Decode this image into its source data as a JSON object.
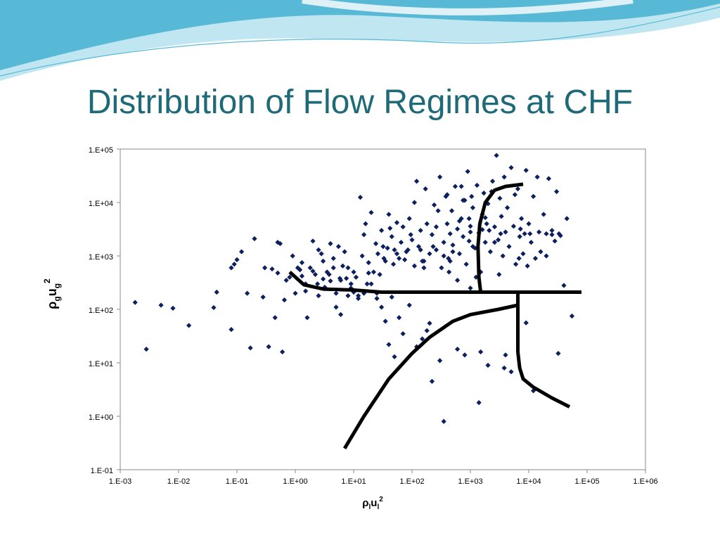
{
  "slide": {
    "title": "Distribution of Flow Regimes at CHF"
  },
  "colors": {
    "title": "#1f6a78",
    "points": "#0c1f5e",
    "boundary": "#000000",
    "wave_dark": "#57b9d6",
    "wave_light": "#bfe6f1"
  },
  "chart_data": {
    "type": "scatter",
    "title": "",
    "xlabel": {
      "base": "ρ",
      "sub1": "l",
      "mid": "u",
      "sub2": "l",
      "sup": "2"
    },
    "ylabel": {
      "base": "ρ",
      "sub1": "g",
      "mid": "u",
      "sub2": "g",
      "sup": "2"
    },
    "x_scale": "log",
    "y_scale": "log",
    "xlim": [
      0.001,
      1000000
    ],
    "ylim": [
      0.1,
      100000
    ],
    "x_ticks": [
      "1.E-03",
      "1.E-02",
      "1.E-01",
      "1.E+00",
      "1.E+01",
      "1.E+02",
      "1.E+03",
      "1.E+04",
      "1.E+05",
      "1.E+06"
    ],
    "y_ticks": [
      "1.E-01",
      "1.E+00",
      "1.E+01",
      "1.E+02",
      "1.E+03",
      "1.E+04",
      "1.E+05"
    ],
    "grid": false,
    "marker": "diamond",
    "points": [
      [
        0.0018,
        135
      ],
      [
        0.0028,
        18
      ],
      [
        0.005,
        120
      ],
      [
        0.008,
        105
      ],
      [
        0.015,
        50
      ],
      [
        0.045,
        210
      ],
      [
        0.04,
        108
      ],
      [
        0.08,
        42
      ],
      [
        0.08,
        600
      ],
      [
        0.09,
        700
      ],
      [
        0.1,
        850
      ],
      [
        0.12,
        1200
      ],
      [
        0.15,
        200
      ],
      [
        0.17,
        19
      ],
      [
        0.2,
        2100
      ],
      [
        0.28,
        170
      ],
      [
        0.3,
        600
      ],
      [
        0.35,
        20
      ],
      [
        0.4,
        570
      ],
      [
        0.5,
        1800
      ],
      [
        0.5,
        480
      ],
      [
        0.55,
        1700
      ],
      [
        0.6,
        16
      ],
      [
        0.65,
        150
      ],
      [
        0.45,
        70
      ],
      [
        0.7,
        350
      ],
      [
        0.8,
        400
      ],
      [
        0.9,
        1000
      ],
      [
        1.1,
        600
      ],
      [
        1.3,
        420
      ],
      [
        1.5,
        300
      ],
      [
        1.6,
        70
      ],
      [
        2,
        1900
      ],
      [
        2.2,
        450
      ],
      [
        2.5,
        1300
      ],
      [
        3,
        800
      ],
      [
        3.5,
        500
      ],
      [
        4,
        1700
      ],
      [
        4.5,
        900
      ],
      [
        5,
        200
      ],
      [
        5.5,
        1500
      ],
      [
        6,
        350
      ],
      [
        7,
        1200
      ],
      [
        8,
        600
      ],
      [
        9,
        300
      ],
      [
        10,
        210
      ],
      [
        12,
        180
      ],
      [
        13,
        12500
      ],
      [
        14,
        1000
      ],
      [
        15,
        2500
      ],
      [
        16,
        4000
      ],
      [
        18,
        480
      ],
      [
        20,
        6500
      ],
      [
        22,
        500
      ],
      [
        25,
        200
      ],
      [
        30,
        3000
      ],
      [
        32,
        1500
      ],
      [
        35,
        800
      ],
      [
        40,
        6000
      ],
      [
        45,
        2300
      ],
      [
        50,
        1300
      ],
      [
        55,
        4200
      ],
      [
        60,
        900
      ],
      [
        70,
        3500
      ],
      [
        80,
        1200
      ],
      [
        90,
        5000
      ],
      [
        100,
        2000
      ],
      [
        110,
        10000
      ],
      [
        120,
        25000
      ],
      [
        130,
        1500
      ],
      [
        140,
        3000
      ],
      [
        150,
        800
      ],
      [
        160,
        600
      ],
      [
        170,
        18000
      ],
      [
        180,
        4000
      ],
      [
        200,
        1100
      ],
      [
        220,
        2500
      ],
      [
        240,
        9000
      ],
      [
        260,
        1300
      ],
      [
        280,
        7000
      ],
      [
        300,
        30000
      ],
      [
        320,
        600
      ],
      [
        350,
        1800
      ],
      [
        380,
        13000
      ],
      [
        400,
        4000
      ],
      [
        420,
        900
      ],
      [
        450,
        2600
      ],
      [
        480,
        7000
      ],
      [
        500,
        1600
      ],
      [
        550,
        20000
      ],
      [
        600,
        3200
      ],
      [
        650,
        1100
      ],
      [
        700,
        5000
      ],
      [
        750,
        2300
      ],
      [
        800,
        11000
      ],
      [
        850,
        700
      ],
      [
        900,
        38000
      ],
      [
        950,
        1900
      ],
      [
        1000,
        3600
      ],
      [
        1100,
        8000
      ],
      [
        1200,
        1400
      ],
      [
        1300,
        21000
      ],
      [
        1400,
        2700
      ],
      [
        1500,
        500
      ],
      [
        1600,
        6000
      ],
      [
        1700,
        15000
      ],
      [
        1800,
        1800
      ],
      [
        1900,
        4000
      ],
      [
        2000,
        9500
      ],
      [
        2200,
        1200
      ],
      [
        2400,
        25000
      ],
      [
        2600,
        3500
      ],
      [
        2800,
        76000
      ],
      [
        3000,
        2000
      ],
      [
        3200,
        12000
      ],
      [
        3400,
        5500
      ],
      [
        3600,
        1000
      ],
      [
        3800,
        30000
      ],
      [
        4000,
        2800
      ],
      [
        4300,
        8000
      ],
      [
        4600,
        1500
      ],
      [
        5000,
        45000
      ],
      [
        5500,
        3600
      ],
      [
        6000,
        700
      ],
      [
        6500,
        18000
      ],
      [
        7000,
        2300
      ],
      [
        7500,
        5000
      ],
      [
        8000,
        1100
      ],
      [
        9000,
        40000
      ],
      [
        10000,
        4000
      ],
      [
        11000,
        1800
      ],
      [
        12000,
        13000
      ],
      [
        13000,
        900
      ],
      [
        14000,
        30000
      ],
      [
        15000,
        2800
      ],
      [
        16000,
        1200
      ],
      [
        18000,
        6000
      ],
      [
        20000,
        1000
      ],
      [
        22000,
        28000
      ],
      [
        25000,
        3000
      ],
      [
        28000,
        1900
      ],
      [
        30000,
        16000
      ],
      [
        35000,
        2400
      ],
      [
        40000,
        280
      ],
      [
        45000,
        5000
      ],
      [
        55000,
        75
      ],
      [
        32000,
        15
      ],
      [
        12000,
        3
      ],
      [
        9000,
        56
      ],
      [
        5000,
        6.8
      ],
      [
        4000,
        14
      ],
      [
        3800,
        8
      ],
      [
        2000,
        9
      ],
      [
        1500,
        16
      ],
      [
        1400,
        1.8
      ],
      [
        1000,
        250
      ],
      [
        800,
        14
      ],
      [
        600,
        18
      ],
      [
        350,
        0.8
      ],
      [
        300,
        11
      ],
      [
        220,
        4.5
      ],
      [
        200,
        55
      ],
      [
        180,
        40
      ],
      [
        150,
        28
      ],
      [
        120,
        20
      ],
      [
        90,
        120
      ],
      [
        70,
        35
      ],
      [
        60,
        70
      ],
      [
        50,
        13
      ],
      [
        45,
        170
      ],
      [
        40,
        22
      ],
      [
        35,
        60
      ],
      [
        30,
        110
      ],
      [
        25,
        160
      ],
      [
        20,
        300
      ],
      [
        15,
        200
      ],
      [
        12,
        160
      ],
      [
        10,
        500
      ],
      [
        9,
        250
      ],
      [
        8,
        180
      ],
      [
        6,
        80
      ],
      [
        5,
        110
      ],
      [
        4,
        340
      ],
      [
        3,
        370
      ],
      [
        2.5,
        180
      ],
      [
        2,
        520
      ],
      [
        1.5,
        220
      ],
      [
        1.2,
        550
      ],
      [
        1,
        200
      ],
      [
        400,
        14000
      ],
      [
        450,
        800
      ],
      [
        600,
        350
      ],
      [
        700,
        20000
      ],
      [
        1100,
        1500
      ],
      [
        1250,
        400
      ],
      [
        2100,
        3000
      ],
      [
        2300,
        16000
      ],
      [
        2600,
        1800
      ],
      [
        3100,
        450
      ],
      [
        3300,
        2600
      ],
      [
        5800,
        14000
      ],
      [
        6800,
        900
      ],
      [
        7200,
        3200
      ],
      [
        8500,
        2600
      ],
      [
        9500,
        650
      ],
      [
        10500,
        2600
      ],
      [
        20000,
        2600
      ],
      [
        25000,
        2500
      ],
      [
        33000,
        2600
      ],
      [
        1800,
        5200
      ],
      [
        1600,
        3100
      ],
      [
        1000,
        2800
      ],
      [
        950,
        5000
      ],
      [
        1050,
        13000
      ],
      [
        750,
        11000
      ],
      [
        650,
        4500
      ],
      [
        500,
        1200
      ],
      [
        430,
        500
      ],
      [
        350,
        1000
      ],
      [
        260,
        3500
      ],
      [
        230,
        1500
      ],
      [
        160,
        800
      ],
      [
        140,
        1300
      ],
      [
        110,
        650
      ],
      [
        95,
        2500
      ],
      [
        85,
        1300
      ],
      [
        75,
        850
      ],
      [
        65,
        1800
      ],
      [
        55,
        1100
      ],
      [
        48,
        700
      ],
      [
        42,
        3300
      ],
      [
        38,
        1400
      ],
      [
        33,
        900
      ],
      [
        28,
        450
      ],
      [
        26,
        1100
      ],
      [
        24,
        1700
      ],
      [
        18,
        750
      ],
      [
        17,
        300
      ],
      [
        11,
        400
      ],
      [
        7.5,
        380
      ],
      [
        6.5,
        650
      ],
      [
        5.8,
        380
      ],
      [
        4.5,
        600
      ],
      [
        3.8,
        450
      ],
      [
        3.2,
        260
      ],
      [
        2.8,
        1100
      ],
      [
        2.4,
        300
      ],
      [
        1.8,
        600
      ],
      [
        1.3,
        750
      ]
    ],
    "boundaries": [
      {
        "points": [
          [
            0.8,
            500
          ],
          [
            1.4,
            290
          ],
          [
            3,
            240
          ],
          [
            10,
            230
          ],
          [
            30,
            210
          ],
          [
            100,
            210
          ],
          [
            1000,
            210
          ],
          [
            10000,
            210
          ],
          [
            80000,
            210
          ]
        ]
      },
      {
        "points": [
          [
            1500,
            210
          ],
          [
            1400,
            400
          ],
          [
            1350,
            1500
          ],
          [
            1450,
            4000
          ],
          [
            1800,
            10000
          ],
          [
            2600,
            17000
          ],
          [
            4000,
            20000
          ],
          [
            8000,
            22000
          ]
        ]
      },
      {
        "points": [
          [
            7,
            0.25
          ],
          [
            15,
            1
          ],
          [
            40,
            5
          ],
          [
            100,
            15
          ],
          [
            200,
            30
          ],
          [
            500,
            60
          ],
          [
            1000,
            80
          ],
          [
            3000,
            100
          ],
          [
            6500,
            120
          ]
        ]
      },
      {
        "points": [
          [
            6500,
            210
          ],
          [
            6500,
            100
          ],
          [
            6500,
            16
          ],
          [
            7000,
            8
          ],
          [
            8000,
            5
          ],
          [
            12000,
            3.5
          ],
          [
            25000,
            2.2
          ],
          [
            50000,
            1.5
          ]
        ]
      }
    ]
  }
}
